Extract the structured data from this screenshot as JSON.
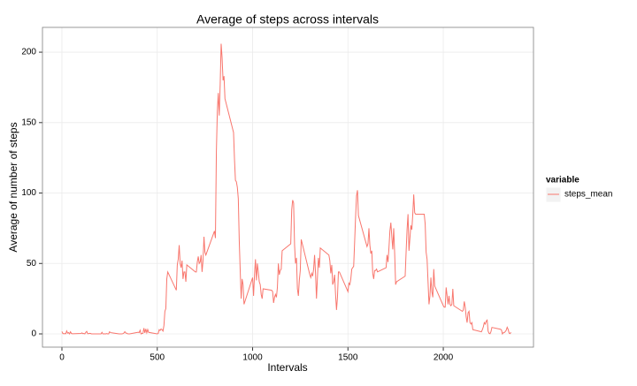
{
  "chart_data": {
    "type": "line",
    "title": "Average of steps across intervals",
    "x_label": "Intervals",
    "y_label": "Average of number of steps",
    "legend_title": "variable",
    "legend_position": "right",
    "grid": true,
    "x": [
      0,
      5,
      10,
      15,
      20,
      25,
      30,
      35,
      40,
      45,
      50,
      55,
      100,
      105,
      110,
      115,
      120,
      125,
      130,
      135,
      140,
      145,
      150,
      155,
      200,
      205,
      210,
      215,
      220,
      225,
      230,
      235,
      240,
      245,
      250,
      255,
      300,
      305,
      310,
      315,
      320,
      325,
      330,
      335,
      340,
      345,
      350,
      355,
      400,
      405,
      410,
      415,
      420,
      425,
      430,
      435,
      440,
      445,
      450,
      455,
      500,
      505,
      510,
      515,
      520,
      525,
      530,
      535,
      540,
      545,
      550,
      555,
      600,
      605,
      610,
      615,
      620,
      625,
      630,
      635,
      640,
      645,
      650,
      655,
      700,
      705,
      710,
      715,
      720,
      725,
      730,
      735,
      740,
      745,
      750,
      755,
      800,
      805,
      810,
      815,
      820,
      825,
      830,
      835,
      840,
      845,
      850,
      855,
      900,
      905,
      910,
      915,
      920,
      925,
      930,
      935,
      940,
      945,
      950,
      955,
      1000,
      1005,
      1010,
      1015,
      1020,
      1025,
      1030,
      1035,
      1040,
      1045,
      1050,
      1055,
      1100,
      1105,
      1110,
      1115,
      1120,
      1125,
      1130,
      1135,
      1140,
      1145,
      1150,
      1155,
      1200,
      1205,
      1210,
      1215,
      1220,
      1225,
      1230,
      1235,
      1240,
      1245,
      1250,
      1255,
      1300,
      1305,
      1310,
      1315,
      1320,
      1325,
      1330,
      1335,
      1340,
      1345,
      1350,
      1355,
      1400,
      1405,
      1410,
      1415,
      1420,
      1425,
      1430,
      1435,
      1440,
      1445,
      1450,
      1455,
      1500,
      1505,
      1510,
      1515,
      1520,
      1525,
      1530,
      1535,
      1540,
      1545,
      1550,
      1555,
      1600,
      1605,
      1610,
      1615,
      1620,
      1625,
      1630,
      1635,
      1640,
      1645,
      1650,
      1655,
      1700,
      1705,
      1710,
      1715,
      1720,
      1725,
      1730,
      1735,
      1740,
      1745,
      1750,
      1755,
      1800,
      1805,
      1810,
      1815,
      1820,
      1825,
      1830,
      1835,
      1840,
      1845,
      1850,
      1855,
      1900,
      1905,
      1910,
      1915,
      1920,
      1925,
      1930,
      1935,
      1940,
      1945,
      1950,
      1955,
      2000,
      2005,
      2010,
      2015,
      2020,
      2025,
      2030,
      2035,
      2040,
      2045,
      2050,
      2055,
      2100,
      2105,
      2110,
      2115,
      2120,
      2125,
      2130,
      2135,
      2140,
      2145,
      2150,
      2155,
      2200,
      2205,
      2210,
      2215,
      2220,
      2225,
      2230,
      2235,
      2240,
      2245,
      2250,
      2255,
      2300,
      2305,
      2310,
      2315,
      2320,
      2325,
      2330,
      2335,
      2340,
      2345,
      2350,
      2355
    ],
    "series": [
      {
        "name": "steps_mean",
        "color": "#F8766D",
        "values": [
          1.7,
          0.3,
          0.1,
          0.2,
          0.1,
          2.1,
          0.5,
          0.9,
          0,
          1.5,
          0.3,
          0.1,
          0.3,
          0.7,
          0.2,
          0.3,
          0,
          1.1,
          1.8,
          0.2,
          0.2,
          0.4,
          0.3,
          0,
          0,
          0,
          1.1,
          0,
          0,
          0.1,
          0,
          0.2,
          0,
          0,
          1.5,
          0.9,
          0,
          0,
          0,
          0,
          0.2,
          0.6,
          1.6,
          0.6,
          0.5,
          0.1,
          0,
          0,
          1.2,
          0.9,
          2.6,
          0,
          0.3,
          0.4,
          4.1,
          0.7,
          3.5,
          0.8,
          3.1,
          1.1,
          0,
          0.3,
          3,
          2.5,
          3.5,
          3,
          2,
          6,
          16,
          18,
          39,
          44,
          31,
          49,
          53,
          63,
          50,
          47,
          52,
          39,
          44,
          44,
          37,
          49,
          44,
          44,
          51,
          55,
          50,
          51,
          56,
          44,
          52,
          69,
          58,
          56,
          73,
          68,
          129,
          158,
          171,
          155,
          177,
          206,
          196,
          180,
          183,
          167,
          143,
          124,
          109,
          108,
          104,
          96,
          66,
          45,
          25,
          39,
          35,
          21,
          40,
          27,
          42,
          53,
          38,
          50,
          44,
          37,
          35,
          28,
          25,
          32,
          31,
          30,
          22,
          26,
          28,
          26,
          33,
          50,
          42,
          45,
          46,
          59,
          64,
          88,
          95,
          93,
          63,
          50,
          54,
          32,
          27,
          38,
          45,
          67,
          42,
          40,
          43,
          41,
          46,
          56,
          43,
          25,
          40,
          54,
          47,
          61,
          56,
          52,
          43,
          49,
          35,
          37,
          42,
          28,
          17,
          26,
          44,
          44,
          30,
          36,
          35,
          39,
          46,
          47,
          48,
          65,
          83,
          98,
          102,
          84,
          62,
          64,
          75,
          63,
          57,
          59,
          43,
          39,
          45,
          45,
          46,
          44,
          47,
          56,
          51,
          61,
          73,
          79,
          69,
          60,
          75,
          57,
          35,
          37,
          41,
          58,
          74,
          85,
          59,
          68,
          77,
          74,
          85,
          99,
          86,
          85,
          85,
          78,
          58,
          53,
          37,
          21,
          27,
          40,
          30,
          26,
          46,
          34,
          20,
          19,
          19,
          33,
          27,
          21,
          27,
          21,
          20,
          21,
          32,
          20,
          16,
          17,
          23,
          19,
          12,
          8,
          15,
          16,
          8,
          7,
          8,
          3,
          1.5,
          3,
          5,
          8,
          7,
          9,
          9.8,
          2,
          0.4,
          0.1,
          1.6,
          4.6,
          3.3,
          2.8,
          0,
          0.8,
          1,
          1.6,
          2.6,
          4.7,
          3.3,
          0.6,
          0.2,
          1.1
        ]
      }
    ],
    "xlim": [
      -102,
      2473
    ],
    "xticks": [
      0,
      500,
      1000,
      1500,
      2000
    ],
    "ylim": [
      -9.4,
      217.6
    ],
    "yticks": [
      0,
      50,
      100,
      150,
      200
    ]
  }
}
